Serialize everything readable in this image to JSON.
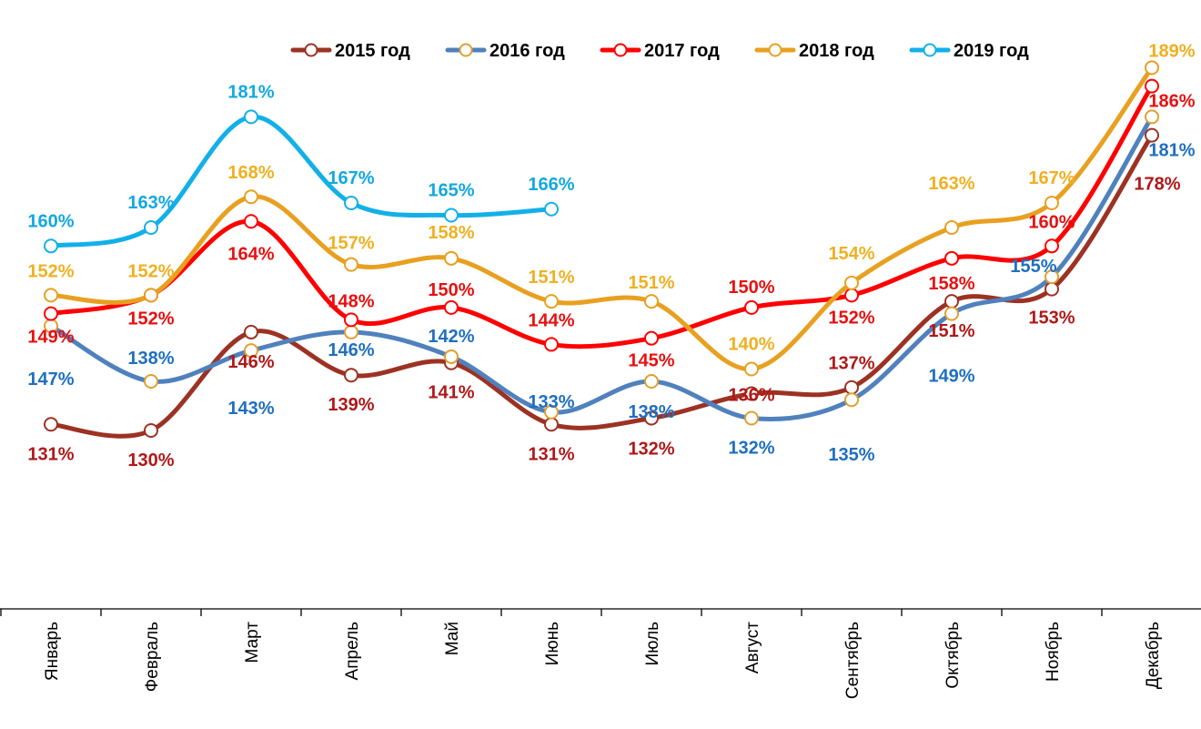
{
  "chart_data": {
    "type": "line",
    "title": "",
    "xlabel": "",
    "ylabel": "",
    "ylim": [
      101,
      200
    ],
    "grid": false,
    "smooth": true,
    "legend_placement": "top",
    "categories": [
      "Январь",
      "Февраль",
      "Март",
      "Апрель",
      "Май",
      "Июнь",
      "Июль",
      "Август",
      "Сентябрь",
      "Октябрь",
      "Ноябрь",
      "Декабрь"
    ],
    "value_suffix": "%",
    "series": [
      {
        "name": "2015 год",
        "line_color": "#9C3223",
        "marker_color": "#9C3223",
        "label_color": "#B01818",
        "values": [
          131,
          130,
          146,
          139,
          141,
          131,
          132,
          136,
          137,
          151,
          153,
          178
        ]
      },
      {
        "name": "2016 год",
        "line_color": "#4F81BD",
        "marker_color": "#E0A030",
        "label_color": "#1F6FBF",
        "values": [
          147,
          138,
          143,
          146,
          142,
          133,
          138,
          132,
          135,
          149,
          155,
          181
        ]
      },
      {
        "name": "2017 год",
        "line_color": "#FF0000",
        "marker_color": "#FF0000",
        "label_color": "#E81010",
        "values": [
          149,
          152,
          164,
          148,
          150,
          144,
          145,
          150,
          152,
          158,
          160,
          186
        ]
      },
      {
        "name": "2018 год",
        "line_color": "#E8A020",
        "marker_color": "#E8A020",
        "label_color": "#F0B020",
        "values": [
          152,
          152,
          168,
          157,
          158,
          151,
          151,
          140,
          154,
          163,
          167,
          189
        ]
      },
      {
        "name": "2019 год",
        "line_color": "#12B0E8",
        "marker_color": "#12B0E8",
        "label_color": "#12A8E0",
        "values": [
          160,
          163,
          181,
          167,
          165,
          166,
          null,
          null,
          null,
          null,
          null,
          null
        ]
      }
    ]
  }
}
